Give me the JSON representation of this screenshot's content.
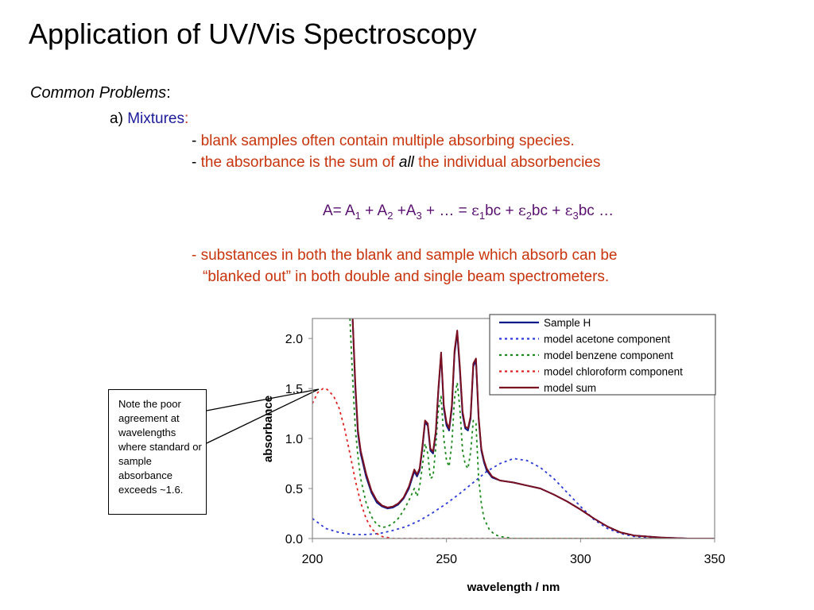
{
  "title": "Application of UV/Vis Spectroscopy",
  "subtitle_italic": "Common Problems",
  "subtitle_colon": ":",
  "item_a_prefix": "a) ",
  "item_a_label": "Mixtures",
  "item_a_colon": ":",
  "bullet1_dash": "- ",
  "bullet1_text": "blank samples often contain multiple absorbing species.",
  "bullet2_dash": "- ",
  "bullet2_text_before": "the absorbance is the sum of ",
  "bullet2_text_italic": "all",
  "bullet2_text_after": " the individual absorbencies",
  "equation": {
    "A_eq": "A= A",
    "s1": "1",
    "plus1": " + A",
    "s2": "2",
    "plus2": " +A",
    "s3": "3",
    "mid": " + … = ",
    "eps1": "ε",
    "e1": "1",
    "bc1": "bc + ",
    "eps2": "ε",
    "e2": "2",
    "bc2": "bc + ",
    "eps3": "ε",
    "e3": "3",
    "bc3": "bc …"
  },
  "bullet3_line1": "- substances in both the blank and sample which absorb can be",
  "bullet3_line2": "“blanked out” in both double and single beam spectrometers.",
  "note_text": "Note the poor agreement at wavelengths where standard or sample absorbance exceeds ~1.6.",
  "chart_data": {
    "type": "line",
    "xlabel": "wavelength / nm",
    "ylabel": "absorbance",
    "xlim": [
      200,
      350
    ],
    "ylim": [
      0,
      2.2
    ],
    "xticks": [
      "200",
      "250",
      "300",
      "350"
    ],
    "yticks": [
      "0.0",
      "0.5",
      "1.0",
      "1.5",
      "2.0"
    ],
    "legend_placement": "top-right",
    "series": [
      {
        "name": "Sample H",
        "color": "#0a1a8a",
        "dash": "solid",
        "x": [
          215,
          216,
          217,
          218,
          220,
          222,
          224,
          226,
          228,
          230,
          232,
          234,
          236,
          238,
          239,
          240,
          241,
          242,
          243,
          244,
          245,
          246,
          247,
          248,
          249,
          250,
          251,
          252,
          253,
          254,
          255,
          256,
          257,
          258,
          259,
          260,
          261,
          262,
          263,
          264,
          265,
          267,
          270,
          275,
          280,
          285,
          290,
          295,
          300,
          305,
          310,
          315,
          320,
          330,
          340,
          350
        ],
        "y": [
          2.2,
          1.5,
          1.05,
          0.85,
          0.62,
          0.46,
          0.36,
          0.32,
          0.3,
          0.31,
          0.34,
          0.4,
          0.5,
          0.67,
          0.62,
          0.68,
          0.9,
          1.16,
          1.13,
          0.88,
          0.85,
          1.05,
          1.48,
          1.84,
          1.3,
          1.13,
          1.08,
          1.3,
          1.85,
          2.06,
          1.68,
          1.24,
          1.1,
          1.08,
          1.2,
          1.72,
          1.78,
          1.2,
          0.88,
          0.76,
          0.68,
          0.61,
          0.58,
          0.56,
          0.53,
          0.5,
          0.44,
          0.37,
          0.29,
          0.2,
          0.12,
          0.06,
          0.03,
          0.01,
          0.0,
          0.0
        ]
      },
      {
        "name": "model acetone component",
        "color": "#2a3ad8",
        "dash": "dot",
        "x": [
          200,
          205,
          210,
          215,
          220,
          225,
          230,
          235,
          240,
          245,
          250,
          255,
          260,
          265,
          270,
          275,
          280,
          285,
          290,
          295,
          300,
          305,
          310,
          315,
          320,
          325,
          330,
          340,
          350
        ],
        "y": [
          0.2,
          0.1,
          0.06,
          0.04,
          0.04,
          0.05,
          0.08,
          0.12,
          0.18,
          0.26,
          0.35,
          0.45,
          0.56,
          0.67,
          0.75,
          0.8,
          0.78,
          0.71,
          0.6,
          0.46,
          0.32,
          0.19,
          0.1,
          0.05,
          0.02,
          0.01,
          0.0,
          0.0,
          0.0
        ]
      },
      {
        "name": "model benzene component",
        "color": "#1a8a1a",
        "dash": "dot",
        "x": [
          214,
          215,
          216,
          217,
          218,
          220,
          222,
          224,
          226,
          228,
          230,
          232,
          234,
          236,
          238,
          239,
          240,
          241,
          242,
          243,
          244,
          245,
          246,
          247,
          248,
          249,
          250,
          251,
          252,
          253,
          254,
          255,
          256,
          257,
          258,
          259,
          260,
          261,
          262,
          263,
          264,
          266,
          268,
          270,
          275,
          280,
          350
        ],
        "y": [
          2.2,
          1.6,
          1.1,
          0.82,
          0.6,
          0.36,
          0.22,
          0.14,
          0.11,
          0.12,
          0.15,
          0.2,
          0.28,
          0.38,
          0.5,
          0.42,
          0.52,
          0.72,
          0.95,
          0.85,
          0.6,
          0.62,
          0.92,
          1.3,
          1.42,
          1.0,
          0.78,
          0.72,
          0.95,
          1.4,
          1.56,
          1.3,
          0.88,
          0.74,
          0.7,
          0.86,
          1.18,
          1.15,
          0.6,
          0.35,
          0.2,
          0.09,
          0.04,
          0.02,
          0.0,
          0.0,
          0.0
        ]
      },
      {
        "name": "model chloroform component",
        "color": "#e02020",
        "dash": "dot",
        "x": [
          200,
          202,
          204,
          205,
          206,
          208,
          210,
          212,
          214,
          216,
          218,
          220,
          222,
          224,
          226,
          228,
          230,
          235,
          240,
          350
        ],
        "y": [
          1.35,
          1.46,
          1.5,
          1.5,
          1.48,
          1.42,
          1.3,
          1.1,
          0.85,
          0.58,
          0.36,
          0.2,
          0.1,
          0.05,
          0.02,
          0.01,
          0.0,
          0.0,
          0.0,
          0.0
        ]
      },
      {
        "name": "model sum",
        "color": "#7a1020",
        "dash": "solid",
        "x": [
          215,
          216,
          217,
          218,
          220,
          222,
          224,
          226,
          228,
          230,
          232,
          234,
          236,
          238,
          239,
          240,
          241,
          242,
          243,
          244,
          245,
          246,
          247,
          248,
          249,
          250,
          251,
          252,
          253,
          254,
          255,
          256,
          257,
          258,
          259,
          260,
          261,
          262,
          263,
          264,
          265,
          267,
          270,
          275,
          280,
          285,
          290,
          295,
          300,
          305,
          310,
          315,
          320,
          330,
          340,
          350
        ],
        "y": [
          2.2,
          1.55,
          1.08,
          0.88,
          0.65,
          0.48,
          0.38,
          0.33,
          0.31,
          0.32,
          0.35,
          0.41,
          0.52,
          0.69,
          0.64,
          0.7,
          0.92,
          1.18,
          1.15,
          0.9,
          0.87,
          1.07,
          1.5,
          1.86,
          1.33,
          1.16,
          1.1,
          1.33,
          1.88,
          2.08,
          1.72,
          1.27,
          1.12,
          1.1,
          1.22,
          1.75,
          1.8,
          1.22,
          0.9,
          0.78,
          0.7,
          0.62,
          0.58,
          0.56,
          0.53,
          0.5,
          0.44,
          0.37,
          0.29,
          0.2,
          0.12,
          0.06,
          0.03,
          0.01,
          0.0,
          0.0
        ]
      }
    ]
  }
}
